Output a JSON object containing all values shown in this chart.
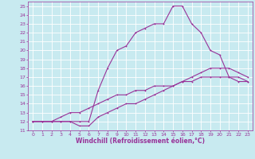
{
  "background_color": "#c8eaf0",
  "line_color": "#993399",
  "grid_color": "#ffffff",
  "xlabel": "Windchill (Refroidissement éolien,°C)",
  "ylabel": "",
  "xlim": [
    -0.5,
    23.5
  ],
  "ylim": [
    11,
    25.5
  ],
  "xticks": [
    0,
    1,
    2,
    3,
    4,
    5,
    6,
    7,
    8,
    9,
    10,
    11,
    12,
    13,
    14,
    15,
    16,
    17,
    18,
    19,
    20,
    21,
    22,
    23
  ],
  "yticks": [
    11,
    12,
    13,
    14,
    15,
    16,
    17,
    18,
    19,
    20,
    21,
    22,
    23,
    24,
    25
  ],
  "line1_x": [
    0,
    1,
    2,
    3,
    4,
    5,
    6,
    7,
    8,
    9,
    10,
    11,
    12,
    13,
    14,
    15,
    16,
    17,
    18,
    19,
    20,
    21,
    22,
    23
  ],
  "line1_y": [
    12,
    12,
    12,
    12.5,
    13,
    13,
    13.5,
    14,
    14.5,
    15,
    15,
    15.5,
    15.5,
    16,
    16,
    16,
    16.5,
    16.5,
    17,
    17,
    17,
    17,
    16.5,
    16.5
  ],
  "line2_x": [
    0,
    1,
    2,
    3,
    4,
    5,
    6,
    7,
    8,
    9,
    10,
    11,
    12,
    13,
    14,
    15,
    16,
    17,
    18,
    19,
    20,
    21,
    22,
    23
  ],
  "line2_y": [
    12,
    12,
    12,
    12,
    12,
    11.5,
    11.5,
    12.5,
    13,
    13.5,
    14,
    14,
    14.5,
    15,
    15.5,
    16,
    16.5,
    17,
    17.5,
    18,
    18,
    18,
    17.5,
    17
  ],
  "line3_x": [
    0,
    1,
    2,
    3,
    4,
    5,
    6,
    7,
    8,
    9,
    10,
    11,
    12,
    13,
    14,
    15,
    16,
    17,
    18,
    19,
    20,
    21,
    22,
    23
  ],
  "line3_y": [
    12,
    12,
    12,
    12,
    12,
    12,
    12,
    15.5,
    18,
    20,
    20.5,
    22,
    22.5,
    23,
    23,
    25,
    25,
    23,
    22,
    20,
    19.5,
    17,
    17,
    16.5
  ],
  "font_color": "#993399",
  "tick_fontsize": 4.5,
  "label_fontsize": 5.5,
  "linewidth": 0.8,
  "markersize": 2.0
}
